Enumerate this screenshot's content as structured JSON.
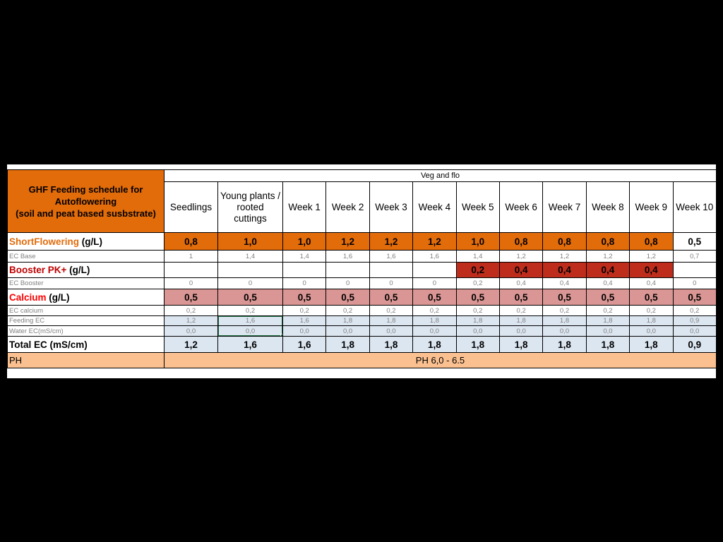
{
  "palette": {
    "orange": "#E26B0A",
    "dark_red": "#BE2D1C",
    "pink": "#D99694",
    "light_blue": "#DCE6F1",
    "tan": "#FAC090",
    "white": "#FFFFFF",
    "gray_text": "#808080",
    "label_orange": "#E26B0A",
    "label_dark_red": "#C00000",
    "label_red": "#FF0000",
    "black": "#000000",
    "selection_green": "#217346"
  },
  "table": {
    "corner_title_lines": [
      "GHF Feeding schedule for",
      "Autoflowering",
      "(soil and peat based susbstrate)"
    ],
    "span_header": "Veg and flo",
    "columns": [
      "Seedlings",
      "Young plants / rooted cuttings",
      "Week 1",
      "Week 2",
      "Week 3",
      "Week 4",
      "Week 5",
      "Week 6",
      "Week 7",
      "Week 8",
      "Week 9",
      "Week 10"
    ],
    "rows": [
      {
        "id": "shortflowering",
        "label_parts": [
          {
            "text": "ShortFlowering",
            "color": "label_orange"
          },
          {
            "text": " (g/L)",
            "color": "black"
          }
        ],
        "text_style": "strong",
        "values": [
          "0,8",
          "1,0",
          "1,0",
          "1,2",
          "1,2",
          "1,2",
          "1,0",
          "0,8",
          "0,8",
          "0,8",
          "0,8",
          "0,5"
        ],
        "cell_bg": [
          "orange",
          "orange",
          "orange",
          "orange",
          "orange",
          "orange",
          "orange",
          "orange",
          "orange",
          "orange",
          "orange",
          "white"
        ]
      },
      {
        "id": "ec_base",
        "label_parts": [
          {
            "text": "EC Base",
            "color": "gray_text"
          }
        ],
        "text_style": "small",
        "values": [
          "1",
          "1,4",
          "1,4",
          "1,6",
          "1,6",
          "1,6",
          "1,4",
          "1,2",
          "1,2",
          "1,2",
          "1,2",
          "0,7"
        ],
        "cell_bg": [
          "white",
          "white",
          "white",
          "white",
          "white",
          "white",
          "white",
          "white",
          "white",
          "white",
          "white",
          "white"
        ]
      },
      {
        "id": "booster_pk",
        "label_parts": [
          {
            "text": "Booster PK+",
            "color": "label_dark_red"
          },
          {
            "text": " (g/L)",
            "color": "black"
          }
        ],
        "text_style": "strong",
        "values": [
          "",
          "",
          "",
          "",
          "",
          "",
          "0,2",
          "0,4",
          "0,4",
          "0,4",
          "0,4",
          ""
        ],
        "cell_bg": [
          "white",
          "white",
          "white",
          "white",
          "white",
          "white",
          "dark_red",
          "dark_red",
          "dark_red",
          "dark_red",
          "dark_red",
          "white"
        ]
      },
      {
        "id": "ec_booster",
        "label_parts": [
          {
            "text": "EC Booster",
            "color": "gray_text"
          }
        ],
        "text_style": "small",
        "values": [
          "0",
          "0",
          "0",
          "0",
          "0",
          "0",
          "0,2",
          "0,4",
          "0,4",
          "0,4",
          "0,4",
          "0"
        ],
        "cell_bg": [
          "white",
          "white",
          "white",
          "white",
          "white",
          "white",
          "white",
          "white",
          "white",
          "white",
          "white",
          "white"
        ]
      },
      {
        "id": "calcium",
        "label_parts": [
          {
            "text": "Calcium",
            "color": "label_red"
          },
          {
            "text": " (g/L)",
            "color": "black"
          }
        ],
        "text_style": "strong",
        "values": [
          "0,5",
          "0,5",
          "0,5",
          "0,5",
          "0,5",
          "0,5",
          "0,5",
          "0,5",
          "0,5",
          "0,5",
          "0,5",
          "0,5"
        ],
        "cell_bg": [
          "pink",
          "pink",
          "pink",
          "pink",
          "pink",
          "pink",
          "pink",
          "pink",
          "pink",
          "pink",
          "pink",
          "pink"
        ]
      },
      {
        "id": "ec_calcium",
        "label_parts": [
          {
            "text": "EC calcium",
            "color": "gray_text"
          }
        ],
        "text_style": "small",
        "values": [
          "0,2",
          "0,2",
          "0,2",
          "0,2",
          "0,2",
          "0,2",
          "0,2",
          "0,2",
          "0,2",
          "0,2",
          "0,2",
          "0,2"
        ],
        "cell_bg": [
          "white",
          "white",
          "white",
          "white",
          "white",
          "white",
          "white",
          "white",
          "white",
          "white",
          "white",
          "white"
        ]
      },
      {
        "id": "feeding_ec",
        "label_parts": [
          {
            "text": "Feeding EC",
            "color": "gray_text"
          }
        ],
        "text_style": "small",
        "values": [
          "1,2",
          "1,6",
          "1,6",
          "1,8",
          "1,8",
          "1,8",
          "1,8",
          "1,8",
          "1,8",
          "1,8",
          "1,8",
          "0,9"
        ],
        "cell_bg": [
          "light_blue",
          "light_blue",
          "light_blue",
          "light_blue",
          "light_blue",
          "light_blue",
          "light_blue",
          "light_blue",
          "light_blue",
          "light_blue",
          "light_blue",
          "light_blue"
        ]
      },
      {
        "id": "water_ec",
        "label_parts": [
          {
            "text": "Water EC(mS/cm)",
            "color": "gray_text"
          }
        ],
        "text_style": "small",
        "values": [
          "0,0",
          "0,0",
          "0,0",
          "0,0",
          "0,0",
          "0,0",
          "0,0",
          "0,0",
          "0,0",
          "0,0",
          "0,0",
          "0,0"
        ],
        "cell_bg": [
          "light_blue",
          "light_blue",
          "light_blue",
          "light_blue",
          "light_blue",
          "light_blue",
          "light_blue",
          "light_blue",
          "light_blue",
          "light_blue",
          "light_blue",
          "light_blue"
        ]
      },
      {
        "id": "total_ec",
        "label_parts": [
          {
            "text": "Total EC (mS/cm)",
            "color": "black"
          }
        ],
        "text_style": "strong",
        "values": [
          "1,2",
          "1,6",
          "1,6",
          "1,8",
          "1,8",
          "1,8",
          "1,8",
          "1,8",
          "1,8",
          "1,8",
          "1,8",
          "0,9"
        ],
        "cell_bg": [
          "light_blue",
          "light_blue",
          "light_blue",
          "light_blue",
          "light_blue",
          "light_blue",
          "light_blue",
          "light_blue",
          "light_blue",
          "light_blue",
          "light_blue",
          "light_blue"
        ]
      }
    ],
    "ph_row": {
      "label": "PH",
      "value": "PH 6,0 - 6.5"
    },
    "selection": {
      "col_index": 1,
      "row_ids": [
        "feeding_ec",
        "water_ec"
      ]
    }
  }
}
